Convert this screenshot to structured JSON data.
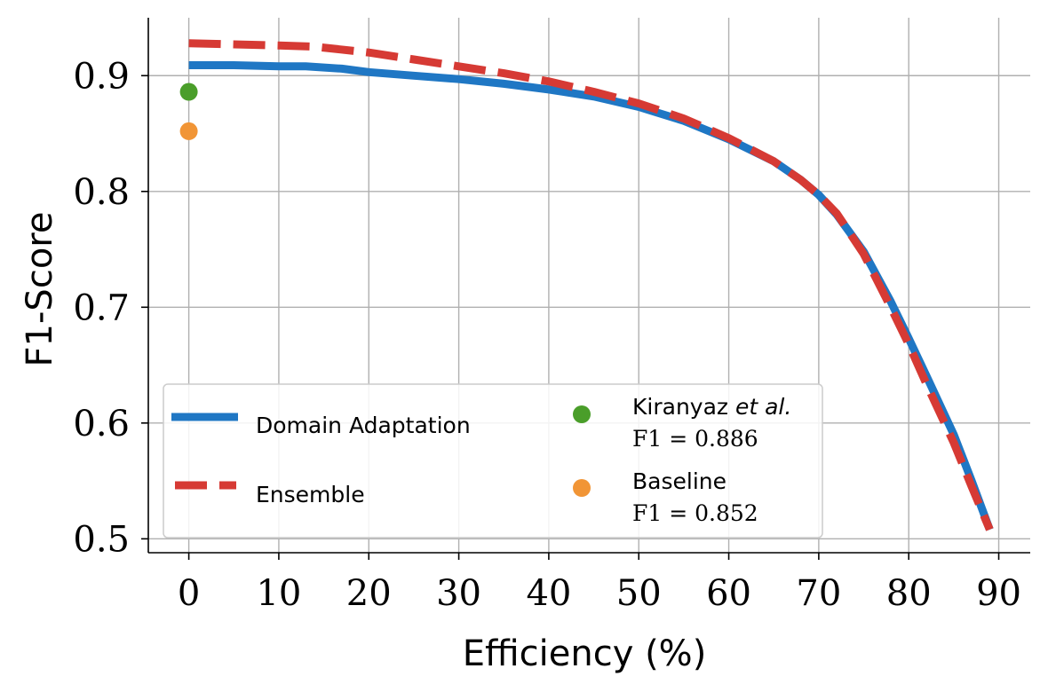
{
  "chart_data": {
    "type": "line",
    "xlabel": "Efficiency (%)",
    "ylabel": "F1-Score",
    "xlim": [
      -4.5,
      93.5
    ],
    "ylim": [
      0.488,
      0.95
    ],
    "xticks": [
      0,
      10,
      20,
      30,
      40,
      50,
      60,
      70,
      80,
      90
    ],
    "xtick_labels": [
      "0",
      "10",
      "20",
      "30",
      "40",
      "50",
      "60",
      "70",
      "80",
      "90"
    ],
    "yticks": [
      0.5,
      0.6,
      0.7,
      0.8,
      0.9
    ],
    "ytick_labels": [
      "0.5",
      "0.6",
      "0.7",
      "0.8",
      "0.9"
    ],
    "grid": true,
    "legend_position": "lower-left",
    "series": [
      {
        "name": "Domain Adaptation",
        "style": "solid",
        "color": "#1f77c4",
        "x": [
          0,
          5,
          10,
          13,
          17,
          20,
          25,
          30,
          35,
          40,
          45,
          50,
          55,
          60,
          65,
          68,
          70,
          72,
          75,
          78,
          80,
          82,
          85,
          87,
          89
        ],
        "y": [
          0.909,
          0.909,
          0.908,
          0.908,
          0.906,
          0.903,
          0.9,
          0.897,
          0.893,
          0.888,
          0.882,
          0.873,
          0.861,
          0.845,
          0.826,
          0.81,
          0.797,
          0.78,
          0.748,
          0.705,
          0.673,
          0.64,
          0.59,
          0.55,
          0.508
        ]
      },
      {
        "name": "Ensemble",
        "style": "dashed",
        "color": "#d63a34",
        "x": [
          0,
          5,
          10,
          14,
          20,
          25,
          30,
          35,
          40,
          45,
          50,
          55,
          60,
          65,
          68,
          70,
          72,
          75,
          78,
          80,
          82,
          85,
          87,
          89
        ],
        "y": [
          0.928,
          0.927,
          0.926,
          0.925,
          0.92,
          0.914,
          0.908,
          0.902,
          0.895,
          0.886,
          0.876,
          0.863,
          0.846,
          0.826,
          0.81,
          0.797,
          0.781,
          0.746,
          0.7,
          0.668,
          0.633,
          0.583,
          0.545,
          0.508
        ]
      }
    ],
    "points": [
      {
        "name": "Kiranyaz et al.",
        "label_main": "Kiranyaz ",
        "label_emph": "et al.",
        "label_f1": "F1 = 0.886",
        "x": 0,
        "y": 0.886,
        "color": "#4a9e2a"
      },
      {
        "name": "Baseline",
        "label_main": "Baseline",
        "label_f1": "F1 = 0.852",
        "x": 0,
        "y": 0.852,
        "color": "#f19536"
      }
    ]
  }
}
